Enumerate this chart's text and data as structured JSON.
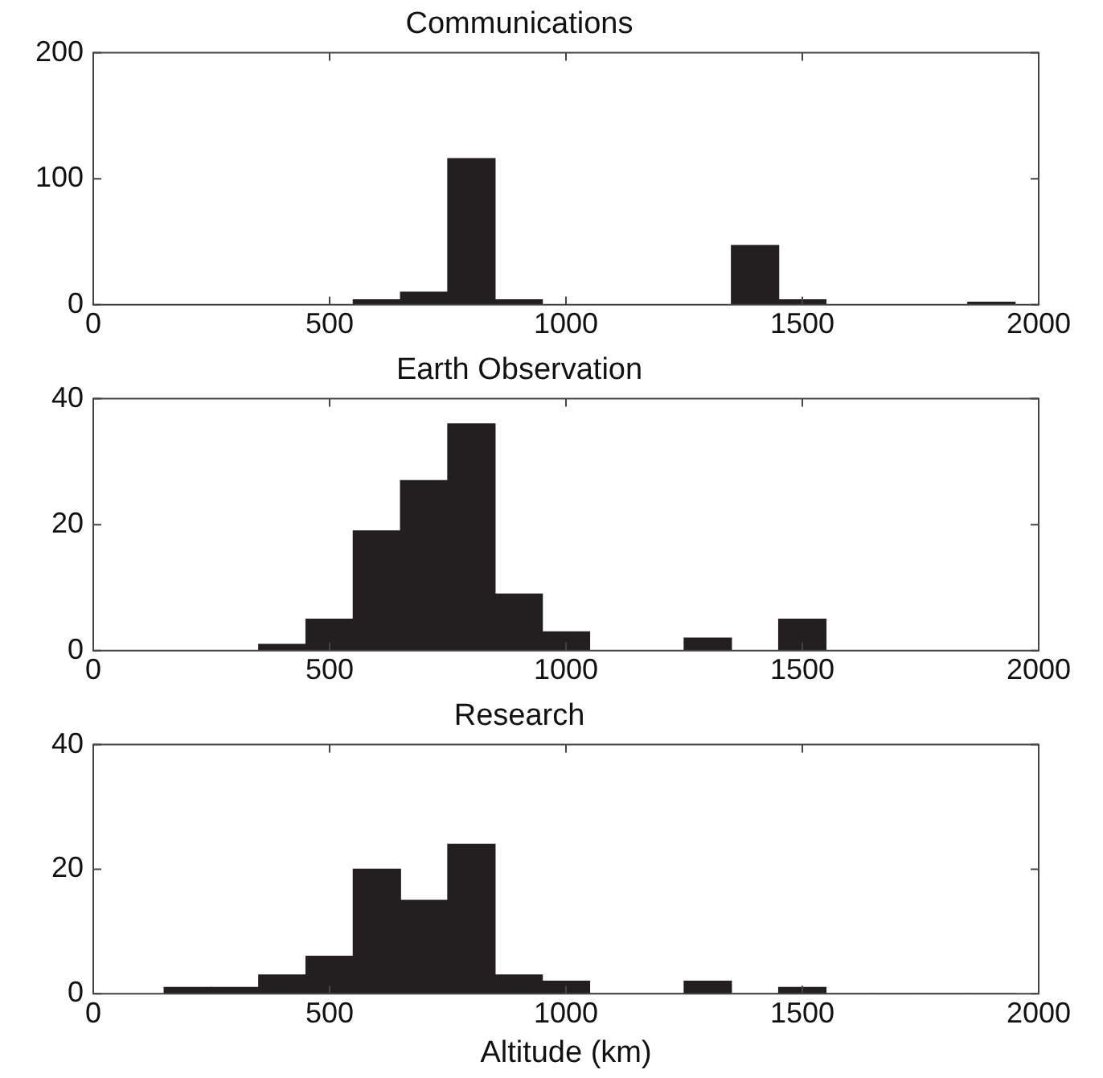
{
  "chart_data": [
    {
      "type": "histogram",
      "title": "Communications",
      "bins": [
        150,
        250,
        350,
        450,
        550,
        650,
        750,
        850,
        950,
        1050,
        1150,
        1250,
        1350,
        1450,
        1550,
        1650,
        1750,
        1850,
        1950
      ],
      "values": [
        0,
        0,
        0,
        0,
        4,
        10,
        116,
        4,
        0,
        0,
        0,
        0,
        47,
        4,
        0,
        0,
        0,
        2
      ],
      "color": "#231f20",
      "xlim": [
        0,
        2000
      ],
      "xticks": [
        0,
        500,
        1000,
        1500,
        2000
      ],
      "ylim": [
        0,
        200
      ],
      "yticks": [
        0,
        100,
        200
      ]
    },
    {
      "type": "histogram",
      "title": "Earth Observation",
      "bins": [
        150,
        250,
        350,
        450,
        550,
        650,
        750,
        850,
        950,
        1050,
        1150,
        1250,
        1350,
        1450,
        1550,
        1650,
        1750,
        1850,
        1950
      ],
      "values": [
        0,
        0,
        1,
        5,
        19,
        27,
        36,
        9,
        3,
        0,
        0,
        2,
        0,
        5,
        0,
        0,
        0,
        0
      ],
      "color": "#231f20",
      "xlim": [
        0,
        2000
      ],
      "xticks": [
        0,
        500,
        1000,
        1500,
        2000
      ],
      "ylim": [
        0,
        40
      ],
      "yticks": [
        0,
        20,
        40
      ]
    },
    {
      "type": "histogram",
      "title": "Research",
      "xlabel": "Altitude (km)",
      "bins": [
        150,
        250,
        350,
        450,
        550,
        650,
        750,
        850,
        950,
        1050,
        1150,
        1250,
        1350,
        1450,
        1550,
        1650,
        1750,
        1850,
        1950
      ],
      "values": [
        1,
        1,
        3,
        6,
        20,
        15,
        24,
        3,
        2,
        0,
        0,
        2,
        0,
        1,
        0,
        0,
        0,
        0
      ],
      "color": "#231f20",
      "xlim": [
        0,
        2000
      ],
      "xticks": [
        0,
        500,
        1000,
        1500,
        2000
      ],
      "ylim": [
        0,
        40
      ],
      "yticks": [
        0,
        20,
        40
      ]
    }
  ]
}
